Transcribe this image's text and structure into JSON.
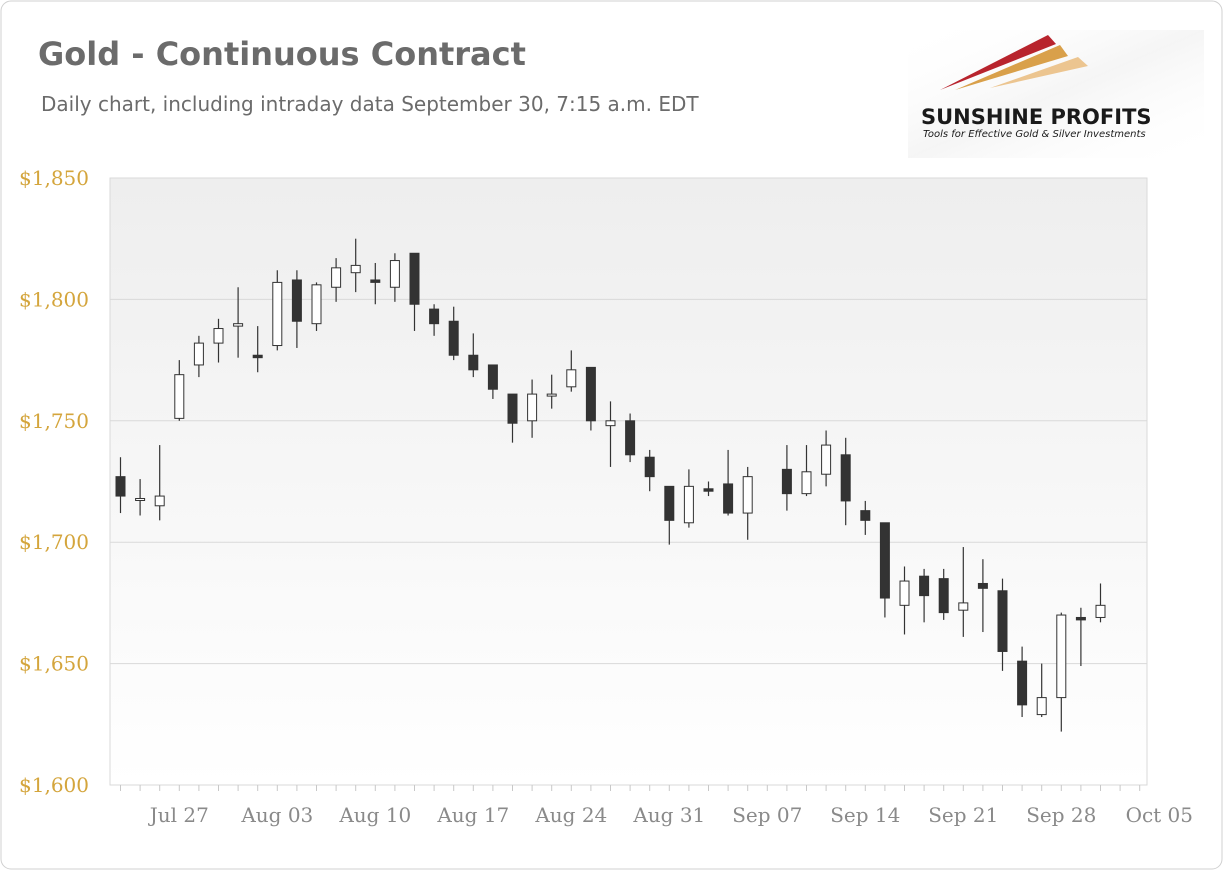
{
  "title": "Gold - Continuous Contract",
  "subtitle": "Daily chart, including intraday data September 30, 7:15 a.m. EDT",
  "logo": {
    "name": "SUNSHINE PROFITS",
    "tagline": "Tools for Effective Gold & Silver Investments"
  },
  "colors": {
    "title": "#6b6b6b",
    "ytick": "#d4a53c",
    "xtick": "#8a8a8a",
    "up_body": "#ffffff",
    "down_body": "#333333",
    "wick": "#333333",
    "grid": "#d9d9d9",
    "plot_top": "#eeeeee",
    "plot_bottom": "#ffffff"
  },
  "chart_data": {
    "type": "candlestick",
    "title": "Gold - Continuous Contract",
    "subtitle": "Daily chart, including intraday data September 30, 7:15 a.m. EDT",
    "ylim": [
      1600,
      1850
    ],
    "yticks": [
      1600,
      1650,
      1700,
      1750,
      1800,
      1850
    ],
    "ytick_labels": [
      "$1,600",
      "$1,650",
      "$1,700",
      "$1,750",
      "$1,800",
      "$1,850"
    ],
    "xticks": [
      "Jul 27",
      "Aug 03",
      "Aug 10",
      "Aug 17",
      "Aug 24",
      "Aug 31",
      "Sep 07",
      "Sep 14",
      "Sep 21",
      "Sep 28",
      "Oct 05"
    ],
    "grid": true,
    "candles": [
      {
        "date": "Jul 22",
        "open": 1727,
        "high": 1735,
        "low": 1712,
        "close": 1719
      },
      {
        "date": "Jul 23",
        "open": 1718,
        "high": 1726,
        "low": 1711,
        "close": 1718
      },
      {
        "date": "Jul 24",
        "open": 1715,
        "high": 1740,
        "low": 1709,
        "close": 1719
      },
      {
        "date": "Jul 27",
        "open": 1751,
        "high": 1775,
        "low": 1750,
        "close": 1769
      },
      {
        "date": "Jul 28",
        "open": 1773,
        "high": 1785,
        "low": 1768,
        "close": 1782
      },
      {
        "date": "Jul 29",
        "open": 1782,
        "high": 1792,
        "low": 1774,
        "close": 1788
      },
      {
        "date": "Jul 30",
        "open": 1789,
        "high": 1805,
        "low": 1776,
        "close": 1790
      },
      {
        "date": "Jul 31",
        "open": 1777,
        "high": 1789,
        "low": 1770,
        "close": 1776
      },
      {
        "date": "Aug 03",
        "open": 1781,
        "high": 1812,
        "low": 1779,
        "close": 1807
      },
      {
        "date": "Aug 04",
        "open": 1808,
        "high": 1812,
        "low": 1780,
        "close": 1791
      },
      {
        "date": "Aug 05",
        "open": 1790,
        "high": 1807,
        "low": 1787,
        "close": 1806
      },
      {
        "date": "Aug 06",
        "open": 1805,
        "high": 1817,
        "low": 1799,
        "close": 1813
      },
      {
        "date": "Aug 07",
        "open": 1811,
        "high": 1825,
        "low": 1803,
        "close": 1814
      },
      {
        "date": "Aug 10",
        "open": 1808,
        "high": 1815,
        "low": 1798,
        "close": 1807
      },
      {
        "date": "Aug 11",
        "open": 1805,
        "high": 1819,
        "low": 1799,
        "close": 1816
      },
      {
        "date": "Aug 12",
        "open": 1819,
        "high": 1819,
        "low": 1787,
        "close": 1798
      },
      {
        "date": "Aug 13",
        "open": 1796,
        "high": 1798,
        "low": 1785,
        "close": 1790
      },
      {
        "date": "Aug 14",
        "open": 1791,
        "high": 1797,
        "low": 1775,
        "close": 1777
      },
      {
        "date": "Aug 17",
        "open": 1777,
        "high": 1786,
        "low": 1768,
        "close": 1771
      },
      {
        "date": "Aug 18",
        "open": 1773,
        "high": 1773,
        "low": 1759,
        "close": 1763
      },
      {
        "date": "Aug 19",
        "open": 1761,
        "high": 1761,
        "low": 1741,
        "close": 1749
      },
      {
        "date": "Aug 20",
        "open": 1750,
        "high": 1767,
        "low": 1743,
        "close": 1761
      },
      {
        "date": "Aug 21",
        "open": 1761,
        "high": 1769,
        "low": 1755,
        "close": 1761
      },
      {
        "date": "Aug 24",
        "open": 1764,
        "high": 1779,
        "low": 1762,
        "close": 1771
      },
      {
        "date": "Aug 25",
        "open": 1772,
        "high": 1772,
        "low": 1746,
        "close": 1750
      },
      {
        "date": "Aug 26",
        "open": 1748,
        "high": 1758,
        "low": 1731,
        "close": 1750
      },
      {
        "date": "Aug 27",
        "open": 1750,
        "high": 1753,
        "low": 1733,
        "close": 1736
      },
      {
        "date": "Aug 28",
        "open": 1735,
        "high": 1738,
        "low": 1721,
        "close": 1727
      },
      {
        "date": "Aug 31",
        "open": 1723,
        "high": 1723,
        "low": 1699,
        "close": 1709
      },
      {
        "date": "Sep 01",
        "open": 1708,
        "high": 1730,
        "low": 1706,
        "close": 1723
      },
      {
        "date": "Sep 02",
        "open": 1722,
        "high": 1725,
        "low": 1719,
        "close": 1721
      },
      {
        "date": "Sep 03",
        "open": 1724,
        "high": 1738,
        "low": 1711,
        "close": 1712
      },
      {
        "date": "Sep 04",
        "open": 1712,
        "high": 1731,
        "low": 1701,
        "close": 1727
      },
      {
        "date": "Sep 08",
        "open": 1730,
        "high": 1740,
        "low": 1713,
        "close": 1720
      },
      {
        "date": "Sep 09",
        "open": 1720,
        "high": 1740,
        "low": 1719,
        "close": 1729
      },
      {
        "date": "Sep 10",
        "open": 1728,
        "high": 1746,
        "low": 1723,
        "close": 1740
      },
      {
        "date": "Sep 11",
        "open": 1736,
        "high": 1743,
        "low": 1707,
        "close": 1717
      },
      {
        "date": "Sep 14",
        "open": 1713,
        "high": 1717,
        "low": 1703,
        "close": 1709
      },
      {
        "date": "Sep 15",
        "open": 1708,
        "high": 1708,
        "low": 1669,
        "close": 1677
      },
      {
        "date": "Sep 16",
        "open": 1674,
        "high": 1690,
        "low": 1662,
        "close": 1684
      },
      {
        "date": "Sep 17",
        "open": 1686,
        "high": 1689,
        "low": 1667,
        "close": 1678
      },
      {
        "date": "Sep 18",
        "open": 1685,
        "high": 1689,
        "low": 1668,
        "close": 1671
      },
      {
        "date": "Sep 21",
        "open": 1672,
        "high": 1698,
        "low": 1661,
        "close": 1675
      },
      {
        "date": "Sep 22",
        "open": 1683,
        "high": 1693,
        "low": 1663,
        "close": 1681
      },
      {
        "date": "Sep 23",
        "open": 1680,
        "high": 1685,
        "low": 1647,
        "close": 1655
      },
      {
        "date": "Sep 24",
        "open": 1651,
        "high": 1657,
        "low": 1628,
        "close": 1633
      },
      {
        "date": "Sep 25",
        "open": 1629,
        "high": 1650,
        "low": 1628,
        "close": 1636
      },
      {
        "date": "Sep 28",
        "open": 1636,
        "high": 1671,
        "low": 1622,
        "close": 1670
      },
      {
        "date": "Sep 29",
        "open": 1669,
        "high": 1673,
        "low": 1649,
        "close": 1668
      },
      {
        "date": "Sep 30",
        "open": 1669,
        "high": 1683,
        "low": 1667,
        "close": 1674
      }
    ]
  }
}
